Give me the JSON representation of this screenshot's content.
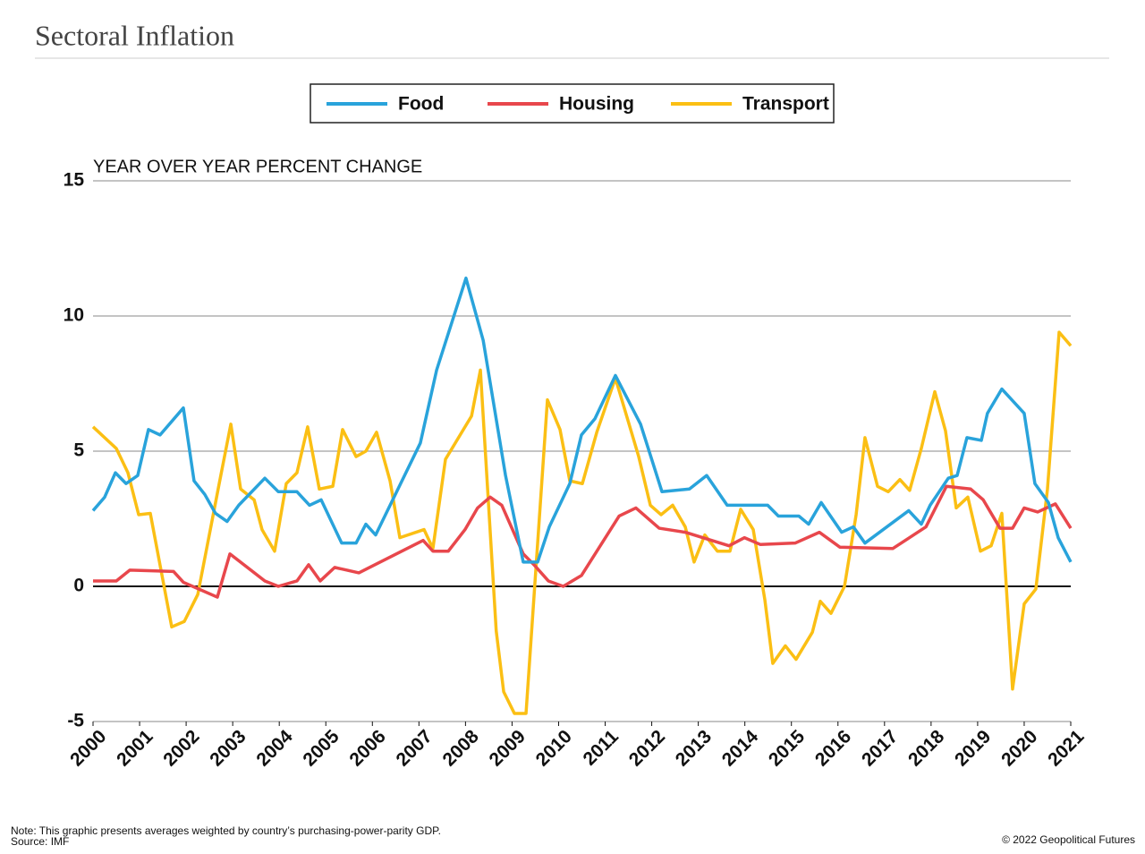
{
  "chart_data": {
    "type": "line",
    "title": "Sectoral Inflation",
    "y_axis_label": "YEAR OVER YEAR PERCENT CHANGE",
    "note": "Note: This graphic presents averages weighted by country’s purchasing-power-parity GDP.",
    "source": "Source: IMF",
    "credit": "© 2022 Geopolitical Futures",
    "legend": "top",
    "grid": true,
    "xlim": [
      2000,
      2021
    ],
    "xticks": [
      2000,
      2001,
      2002,
      2003,
      2004,
      2005,
      2006,
      2007,
      2008,
      2009,
      2010,
      2011,
      2012,
      2013,
      2014,
      2015,
      2016,
      2017,
      2018,
      2019,
      2020,
      2021
    ],
    "ylim": [
      -5,
      15
    ],
    "yticks": [
      -5,
      0,
      5,
      10,
      15
    ],
    "series": [
      {
        "name": "Food",
        "color": "#29a3db",
        "x": [
          2000,
          2000.25,
          2000.48,
          2000.71,
          2000.96,
          2001.19,
          2001.44,
          2001.94,
          2002.17,
          2002.4,
          2002.63,
          2002.88,
          2003.13,
          2003.69,
          2003.98,
          2004.38,
          2004.65,
          2004.9,
          2005.34,
          2005.65,
          2005.86,
          2006.07,
          2007.03,
          2007.38,
          2008.01,
          2008.38,
          2008.86,
          2009.24,
          2009.55,
          2009.8,
          2010.24,
          2010.49,
          2010.78,
          2011.22,
          2011.76,
          2012.22,
          2012.81,
          2013.18,
          2013.62,
          2014.49,
          2014.72,
          2015.16,
          2015.37,
          2015.64,
          2016.08,
          2016.33,
          2016.58,
          2017.52,
          2017.79,
          2017.98,
          2018.37,
          2018.56,
          2018.77,
          2019.08,
          2019.21,
          2019.52,
          2020,
          2020.23,
          2020.52,
          2020.73,
          2021
        ],
        "values": [
          2.8,
          3.3,
          4.2,
          3.8,
          4.1,
          5.8,
          5.6,
          6.6,
          3.9,
          3.4,
          2.7,
          2.4,
          3.0,
          4.0,
          3.5,
          3.5,
          3.0,
          3.2,
          1.6,
          1.6,
          2.3,
          1.9,
          5.3,
          8.0,
          11.4,
          9.1,
          4.1,
          0.9,
          0.9,
          2.2,
          3.8,
          5.6,
          6.2,
          7.8,
          6.0,
          3.5,
          3.6,
          4.1,
          3.0,
          3.0,
          2.6,
          2.6,
          2.3,
          3.1,
          2.0,
          2.2,
          1.6,
          2.8,
          2.3,
          3.0,
          4.0,
          4.1,
          5.5,
          5.4,
          6.4,
          7.3,
          6.4,
          3.8,
          3.1,
          1.8,
          0.9
        ]
      },
      {
        "name": "Housing",
        "color": "#e8474c",
        "x": [
          2000,
          2000.5,
          2000.79,
          2001.73,
          2001.94,
          2002.67,
          2002.94,
          2003.69,
          2003.98,
          2004.38,
          2004.63,
          2004.88,
          2005.19,
          2005.71,
          2007.09,
          2007.3,
          2007.63,
          2007.99,
          2008.26,
          2008.53,
          2008.78,
          2009.24,
          2009.47,
          2009.78,
          2010.1,
          2010.49,
          2011.3,
          2011.66,
          2012.16,
          2012.72,
          2013.66,
          2013.99,
          2014.33,
          2015.08,
          2015.6,
          2016.04,
          2017.18,
          2017.89,
          2018.33,
          2018.85,
          2019.12,
          2019.48,
          2019.75,
          2020,
          2020.29,
          2020.67,
          2021
        ],
        "values": [
          0.2,
          0.2,
          0.6,
          0.55,
          0.15,
          -0.4,
          1.2,
          0.2,
          0,
          0.2,
          0.8,
          0.2,
          0.7,
          0.5,
          1.7,
          1.3,
          1.3,
          2.1,
          2.9,
          3.3,
          3.0,
          1.2,
          0.8,
          0.2,
          0,
          0.4,
          2.6,
          2.9,
          2.15,
          2.0,
          1.5,
          1.8,
          1.55,
          1.6,
          2.0,
          1.45,
          1.4,
          2.2,
          3.7,
          3.6,
          3.2,
          2.15,
          2.15,
          2.9,
          2.75,
          3.05,
          2.15
        ]
      },
      {
        "name": "Transport",
        "color": "#fbbf14",
        "x": [
          2000,
          2000.5,
          2000.75,
          2000.98,
          2001.23,
          2001.69,
          2001.96,
          2002.25,
          2002.71,
          2002.96,
          2003.17,
          2003.46,
          2003.63,
          2003.9,
          2004.15,
          2004.38,
          2004.61,
          2004.86,
          2005.15,
          2005.36,
          2005.65,
          2005.86,
          2006.09,
          2006.38,
          2006.59,
          2007.11,
          2007.3,
          2007.57,
          2008.13,
          2008.32,
          2008.66,
          2008.82,
          2009.05,
          2009.3,
          2009.76,
          2010.03,
          2010.24,
          2010.51,
          2010.82,
          2011.22,
          2011.72,
          2011.97,
          2012.2,
          2012.45,
          2012.72,
          2012.91,
          2013.14,
          2013.41,
          2013.68,
          2013.91,
          2014.18,
          2014.43,
          2014.6,
          2014.87,
          2015.1,
          2015.45,
          2015.62,
          2015.85,
          2016.14,
          2016.39,
          2016.58,
          2016.85,
          2017.08,
          2017.33,
          2017.54,
          2017.79,
          2018.08,
          2018.31,
          2018.54,
          2018.79,
          2019.06,
          2019.29,
          2019.52,
          2019.75,
          2020,
          2020.25,
          2020.5,
          2020.63,
          2020.75,
          2021
        ],
        "values": [
          5.9,
          5.1,
          4.2,
          2.65,
          2.7,
          -1.5,
          -1.3,
          -0.3,
          3.8,
          6.0,
          3.6,
          3.2,
          2.1,
          1.3,
          3.8,
          4.2,
          5.9,
          3.6,
          3.7,
          5.8,
          4.8,
          5.0,
          5.7,
          3.9,
          1.8,
          2.1,
          1.4,
          4.7,
          6.3,
          8.0,
          -1.65,
          -3.9,
          -4.7,
          -4.7,
          6.9,
          5.8,
          3.9,
          3.8,
          5.7,
          7.7,
          4.8,
          3.0,
          2.65,
          3.0,
          2.2,
          0.9,
          1.9,
          1.3,
          1.3,
          2.85,
          2.1,
          -0.5,
          -2.85,
          -2.2,
          -2.7,
          -1.7,
          -0.55,
          -1.0,
          0.0,
          2.65,
          5.5,
          3.7,
          3.5,
          3.95,
          3.55,
          5.1,
          7.2,
          5.75,
          2.9,
          3.3,
          1.3,
          1.5,
          2.7,
          -3.8,
          -0.65,
          -0.1,
          3.6,
          6.6,
          9.4,
          8.9
        ]
      }
    ]
  }
}
